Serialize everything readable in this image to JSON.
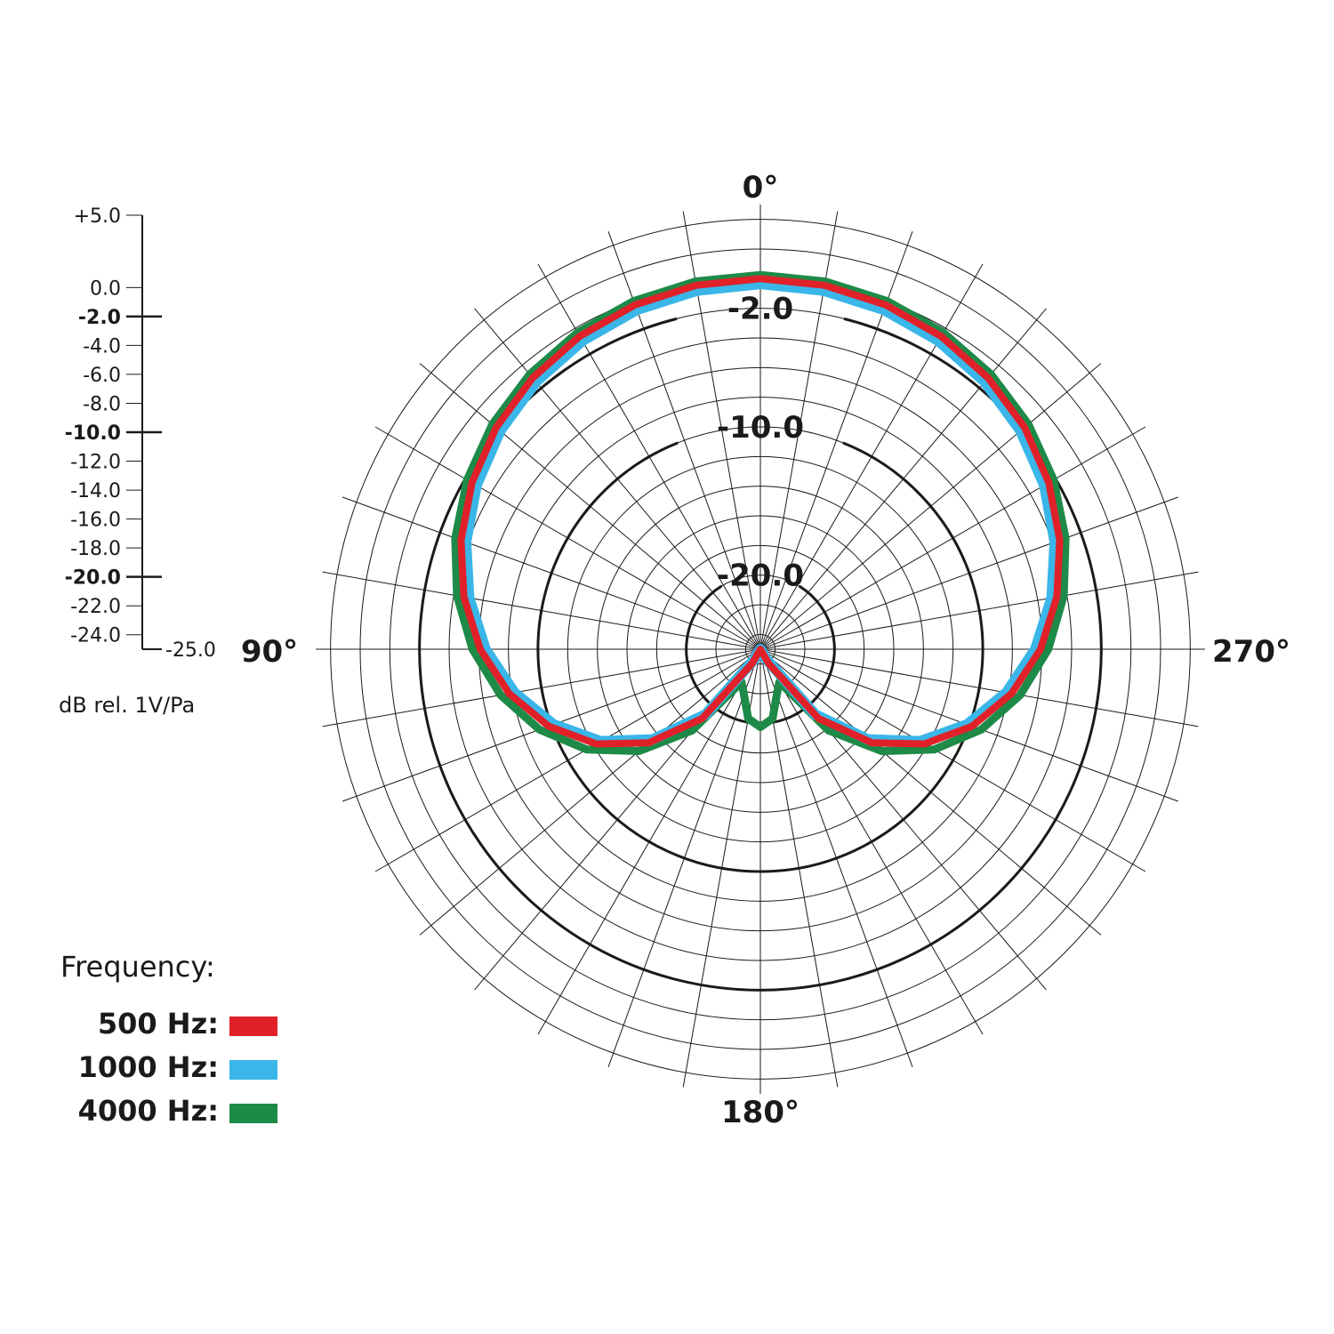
{
  "chart_data": {
    "type": "polar",
    "angle_labels": [
      {
        "angle": 0,
        "text": "0°"
      },
      {
        "angle": 90,
        "text": "90°"
      },
      {
        "angle": 180,
        "text": "180°"
      },
      {
        "angle": 270,
        "text": "270°"
      }
    ],
    "angle_direction": "counterclockwise",
    "spoke_step_deg": 10,
    "r_range": [
      -25.0,
      5.0
    ],
    "ring_step_db": 2.0,
    "major_rings": [
      -2.0,
      -10.0,
      -20.0
    ],
    "ring_labels": [
      "-2.0",
      "-10.0",
      "-20.0"
    ],
    "scale_ticks": [
      {
        "value": 5.0,
        "text": "+5.0",
        "bold": false
      },
      {
        "value": 0.0,
        "text": "0.0",
        "bold": false
      },
      {
        "value": -2.0,
        "text": "-2.0",
        "bold": true
      },
      {
        "value": -4.0,
        "text": "-4.0",
        "bold": false
      },
      {
        "value": -6.0,
        "text": "-6.0",
        "bold": false
      },
      {
        "value": -8.0,
        "text": "-8.0",
        "bold": false
      },
      {
        "value": -10.0,
        "text": "-10.0",
        "bold": true
      },
      {
        "value": -12.0,
        "text": "-12.0",
        "bold": false
      },
      {
        "value": -14.0,
        "text": "-14.0",
        "bold": false
      },
      {
        "value": -16.0,
        "text": "-16.0",
        "bold": false
      },
      {
        "value": -18.0,
        "text": "-18.0",
        "bold": false
      },
      {
        "value": -20.0,
        "text": "-20.0",
        "bold": true
      },
      {
        "value": -22.0,
        "text": "-22.0",
        "bold": false
      },
      {
        "value": -24.0,
        "text": "-24.0",
        "bold": false
      },
      {
        "value": -25.0,
        "text": "-25.0",
        "bold": false
      }
    ],
    "unit_label": "dB rel. 1V/Pa",
    "legend_title": "Frequency:",
    "legend_placement": "bottom-left",
    "angles": [
      0,
      10,
      20,
      30,
      40,
      50,
      60,
      70,
      80,
      90,
      100,
      110,
      120,
      130,
      140,
      150,
      160,
      170,
      180,
      190,
      200,
      210,
      220,
      230,
      240,
      250,
      260,
      270,
      280,
      290,
      300,
      310,
      320,
      330,
      340,
      350,
      360
    ],
    "series": [
      {
        "name": "4000 Hz:",
        "color": "#1e8a48",
        "values": [
          0.0,
          -0.06,
          -0.26,
          -0.58,
          -1.04,
          -1.64,
          -2.4,
          -3.34,
          -4.47,
          -5.83,
          -7.45,
          -9.39,
          -11.72,
          -14.56,
          -18.1,
          -22.7,
          -22.0,
          -20.5,
          -20.0,
          -20.5,
          -22.0,
          -22.7,
          -18.1,
          -14.56,
          -11.72,
          -9.39,
          -7.45,
          -5.83,
          -4.47,
          -3.34,
          -2.4,
          -1.64,
          -1.04,
          -0.58,
          -0.26,
          -0.06,
          0.0
        ]
      },
      {
        "name": "1000 Hz:",
        "color": "#3ab6e8",
        "values": [
          0.0,
          -0.07,
          -0.28,
          -0.62,
          -1.1,
          -1.73,
          -2.53,
          -3.51,
          -4.69,
          -6.1,
          -7.79,
          -9.8,
          -12.22,
          -15.18,
          -18.9,
          -23.9,
          -25.0,
          -25.0,
          -25.0,
          -25.0,
          -25.0,
          -23.9,
          -18.9,
          -15.18,
          -12.22,
          -9.8,
          -7.79,
          -6.1,
          -4.69,
          -3.51,
          -2.53,
          -1.73,
          -1.1,
          -0.62,
          -0.28,
          -0.07,
          0.0
        ]
      },
      {
        "name": "500 Hz:",
        "color": "#e02129",
        "values": [
          0.0,
          -0.07,
          -0.28,
          -0.62,
          -1.1,
          -1.73,
          -2.53,
          -3.51,
          -4.69,
          -6.1,
          -7.79,
          -9.8,
          -12.22,
          -15.18,
          -18.9,
          -23.9,
          -25.0,
          -25.0,
          -25.0,
          -25.0,
          -25.0,
          -23.9,
          -18.9,
          -15.18,
          -12.22,
          -9.8,
          -7.79,
          -6.1,
          -4.69,
          -3.51,
          -2.53,
          -1.73,
          -1.1,
          -0.62,
          -0.28,
          -0.07,
          0.0
        ]
      }
    ],
    "legend_order": [
      "500 Hz:",
      "1000 Hz:",
      "4000 Hz:"
    ]
  }
}
